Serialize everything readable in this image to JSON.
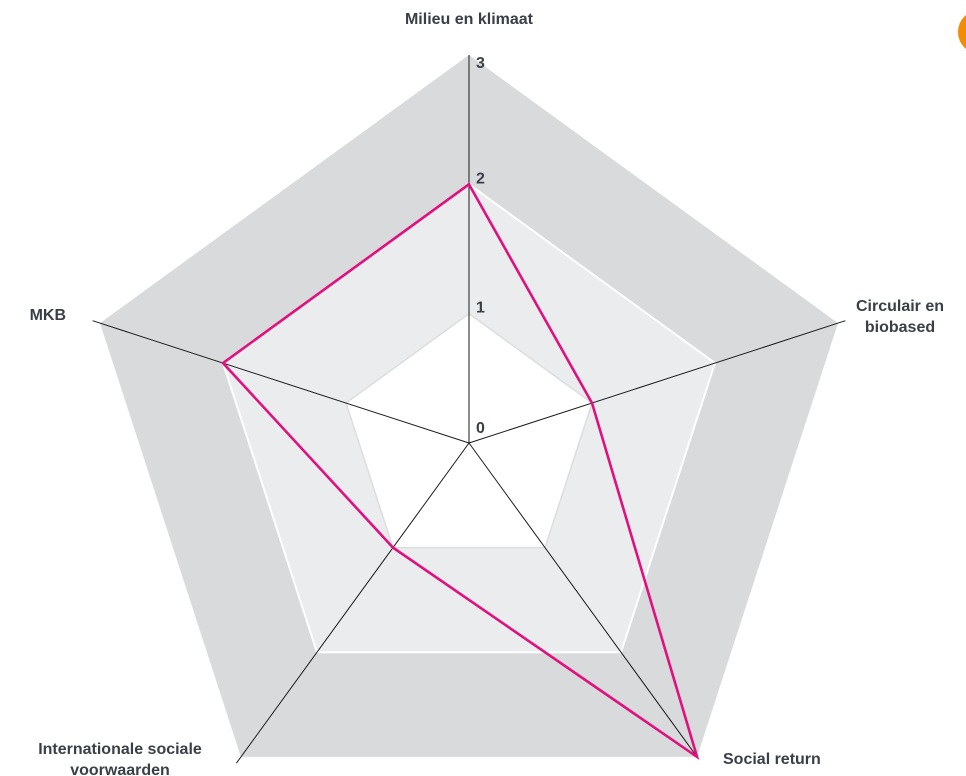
{
  "chart_data": {
    "type": "radar",
    "axes": [
      {
        "label_lines": [
          "Milieu en klimaat"
        ]
      },
      {
        "label_lines": [
          "Circulair en",
          "biobased"
        ]
      },
      {
        "label_lines": [
          "Social return"
        ]
      },
      {
        "label_lines": [
          "Internationale sociale",
          "voorwaarden"
        ]
      },
      {
        "label_lines": [
          "MKB"
        ]
      }
    ],
    "ticks": [
      "0",
      "1",
      "2",
      "3"
    ],
    "range": [
      0,
      3
    ],
    "series": [
      {
        "values": [
          2,
          1,
          3,
          1,
          2
        ]
      }
    ],
    "colors": {
      "series": "#e0117f",
      "band_outer": "#d9dadc",
      "band_middle": "#ebecee",
      "band_inner": "#ffffff",
      "ring_line": "#ffffff",
      "spoke": "#1a1a1a",
      "text": "#3a3f47"
    },
    "decoration": {
      "corner_accent_color": "#f28c00"
    }
  }
}
